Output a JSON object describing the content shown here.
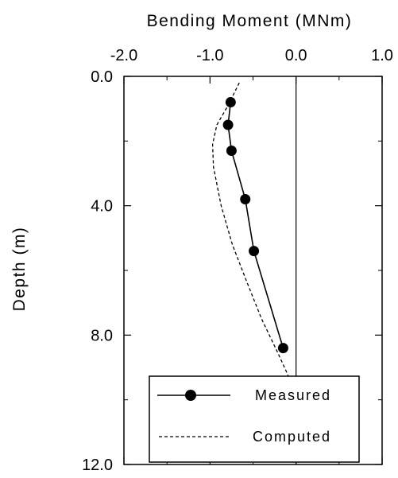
{
  "chart_data": {
    "type": "line",
    "title": "Bending Moment (MNm)",
    "xlabel": "Bending Moment (MNm)",
    "ylabel": "Depth (m)",
    "x_axis_position": "top",
    "y_axis_inverted": true,
    "xlim": [
      -2.0,
      1.0
    ],
    "ylim": [
      0.0,
      12.0
    ],
    "x_ticks": [
      -2.0,
      -1.0,
      0.0,
      1.0
    ],
    "x_tick_labels": [
      "-2.0",
      "-1.0",
      "0.0",
      "1.0"
    ],
    "y_ticks": [
      0.0,
      4.0,
      8.0,
      12.0
    ],
    "y_tick_labels": [
      "0.0",
      "4.0",
      "8.0",
      "12.0"
    ],
    "zero_reference_line": 0.0,
    "grid": false,
    "legend_position": "bottom-left",
    "series": [
      {
        "name": "Measured",
        "style": "solid-line-filled-circles",
        "color": "#000000",
        "x": [
          -0.76,
          -0.79,
          -0.75,
          -0.59,
          -0.49,
          -0.15
        ],
        "y": [
          0.8,
          1.5,
          2.3,
          3.8,
          5.4,
          8.4
        ]
      },
      {
        "name": "Computed",
        "style": "dashed-line",
        "color": "#000000",
        "x": [
          -0.66,
          -0.79,
          -0.92,
          -0.97,
          -0.96,
          -0.87,
          -0.74,
          -0.58,
          -0.4,
          -0.22,
          -0.1,
          -0.06
        ],
        "y": [
          0.2,
          0.9,
          1.5,
          2.1,
          2.8,
          4.0,
          5.2,
          6.3,
          7.5,
          8.5,
          9.2,
          9.5
        ]
      }
    ]
  }
}
